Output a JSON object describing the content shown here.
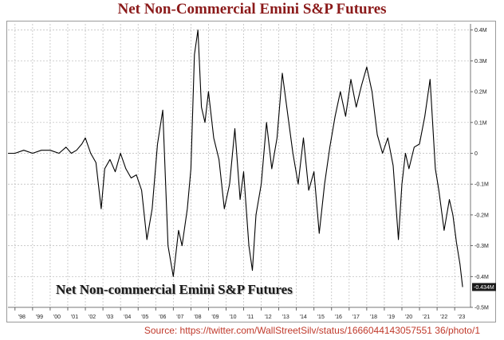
{
  "title": "Net Non-Commercial Emini S&P Futures",
  "inset_label": "Net Non-commercial Emini S&P Futures",
  "source": "Source: https://twitter.com/WallStreetSilv/status/1666044143057551 36/photo/1",
  "chart_data": {
    "type": "line",
    "title": "Net Non-Commercial Emini S&P Futures",
    "xlabel": "",
    "ylabel": "",
    "y_tick_labels": [
      "0.4M",
      "0.3M",
      "0.2M",
      "0.1M",
      "0",
      "-0.1M",
      "-0.2M",
      "-0.3M",
      "-0.4M",
      "-0.5M"
    ],
    "y_tick_values": [
      0.4,
      0.3,
      0.2,
      0.1,
      0,
      -0.1,
      -0.2,
      -0.3,
      -0.4,
      -0.5
    ],
    "x_tick_labels": [
      "'98",
      "'99",
      "'00",
      "'01",
      "'02",
      "'03",
      "'04",
      "'05",
      "'06",
      "'07",
      "'08",
      "'09",
      "'10",
      "'11",
      "'12",
      "'13",
      "'14",
      "'15",
      "'16",
      "'17",
      "'18",
      "'19",
      "'20",
      "'21",
      "'22",
      "'23"
    ],
    "ylim": [
      -0.5,
      0.42
    ],
    "xlim": [
      1997.6,
      2023.9
    ],
    "last_value_label": "-0.434M",
    "last_value": -0.434,
    "grid": true,
    "line_color": "#000000",
    "x": [
      1997.6,
      1998.0,
      1998.5,
      1999.0,
      1999.5,
      2000.0,
      2000.5,
      2000.9,
      2001.2,
      2001.5,
      2001.8,
      2002.0,
      2002.3,
      2002.6,
      2002.9,
      2003.1,
      2003.4,
      2003.7,
      2004.0,
      2004.3,
      2004.6,
      2004.9,
      2005.2,
      2005.5,
      2005.8,
      2006.1,
      2006.4,
      2006.7,
      2007.0,
      2007.3,
      2007.5,
      2007.8,
      2008.0,
      2008.2,
      2008.4,
      2008.6,
      2008.8,
      2009.0,
      2009.3,
      2009.6,
      2009.9,
      2010.2,
      2010.5,
      2010.8,
      2011.0,
      2011.3,
      2011.5,
      2011.7,
      2012.0,
      2012.3,
      2012.6,
      2012.9,
      2013.2,
      2013.5,
      2013.8,
      2014.1,
      2014.4,
      2014.7,
      2015.0,
      2015.3,
      2015.6,
      2015.9,
      2016.2,
      2016.5,
      2016.8,
      2017.1,
      2017.4,
      2017.7,
      2018.0,
      2018.3,
      2018.6,
      2018.9,
      2019.2,
      2019.5,
      2019.8,
      2020.0,
      2020.2,
      2020.4,
      2020.7,
      2021.0,
      2021.3,
      2021.6,
      2021.9,
      2022.1,
      2022.4,
      2022.7,
      2022.9,
      2023.1,
      2023.3,
      2023.45
    ],
    "values": [
      0.0,
      0.0,
      0.01,
      0.0,
      0.01,
      0.01,
      0.0,
      0.02,
      0.0,
      0.01,
      0.03,
      0.05,
      0.0,
      -0.03,
      -0.18,
      -0.05,
      -0.02,
      -0.06,
      0.0,
      -0.05,
      -0.08,
      -0.07,
      -0.12,
      -0.28,
      -0.18,
      0.03,
      0.14,
      -0.3,
      -0.4,
      -0.25,
      -0.3,
      -0.18,
      -0.05,
      0.32,
      0.4,
      0.15,
      0.1,
      0.2,
      0.05,
      -0.02,
      -0.18,
      -0.1,
      0.08,
      -0.15,
      -0.06,
      -0.3,
      -0.38,
      -0.2,
      -0.1,
      0.1,
      -0.05,
      0.05,
      0.26,
      0.13,
      0.0,
      -0.1,
      0.05,
      -0.12,
      -0.06,
      -0.26,
      -0.1,
      0.02,
      0.12,
      0.2,
      0.12,
      0.24,
      0.15,
      0.22,
      0.28,
      0.2,
      0.06,
      0.0,
      0.05,
      -0.04,
      -0.28,
      -0.1,
      0.0,
      -0.05,
      0.02,
      0.03,
      0.12,
      0.24,
      -0.05,
      -0.12,
      -0.25,
      -0.15,
      -0.2,
      -0.29,
      -0.36,
      -0.434
    ]
  }
}
